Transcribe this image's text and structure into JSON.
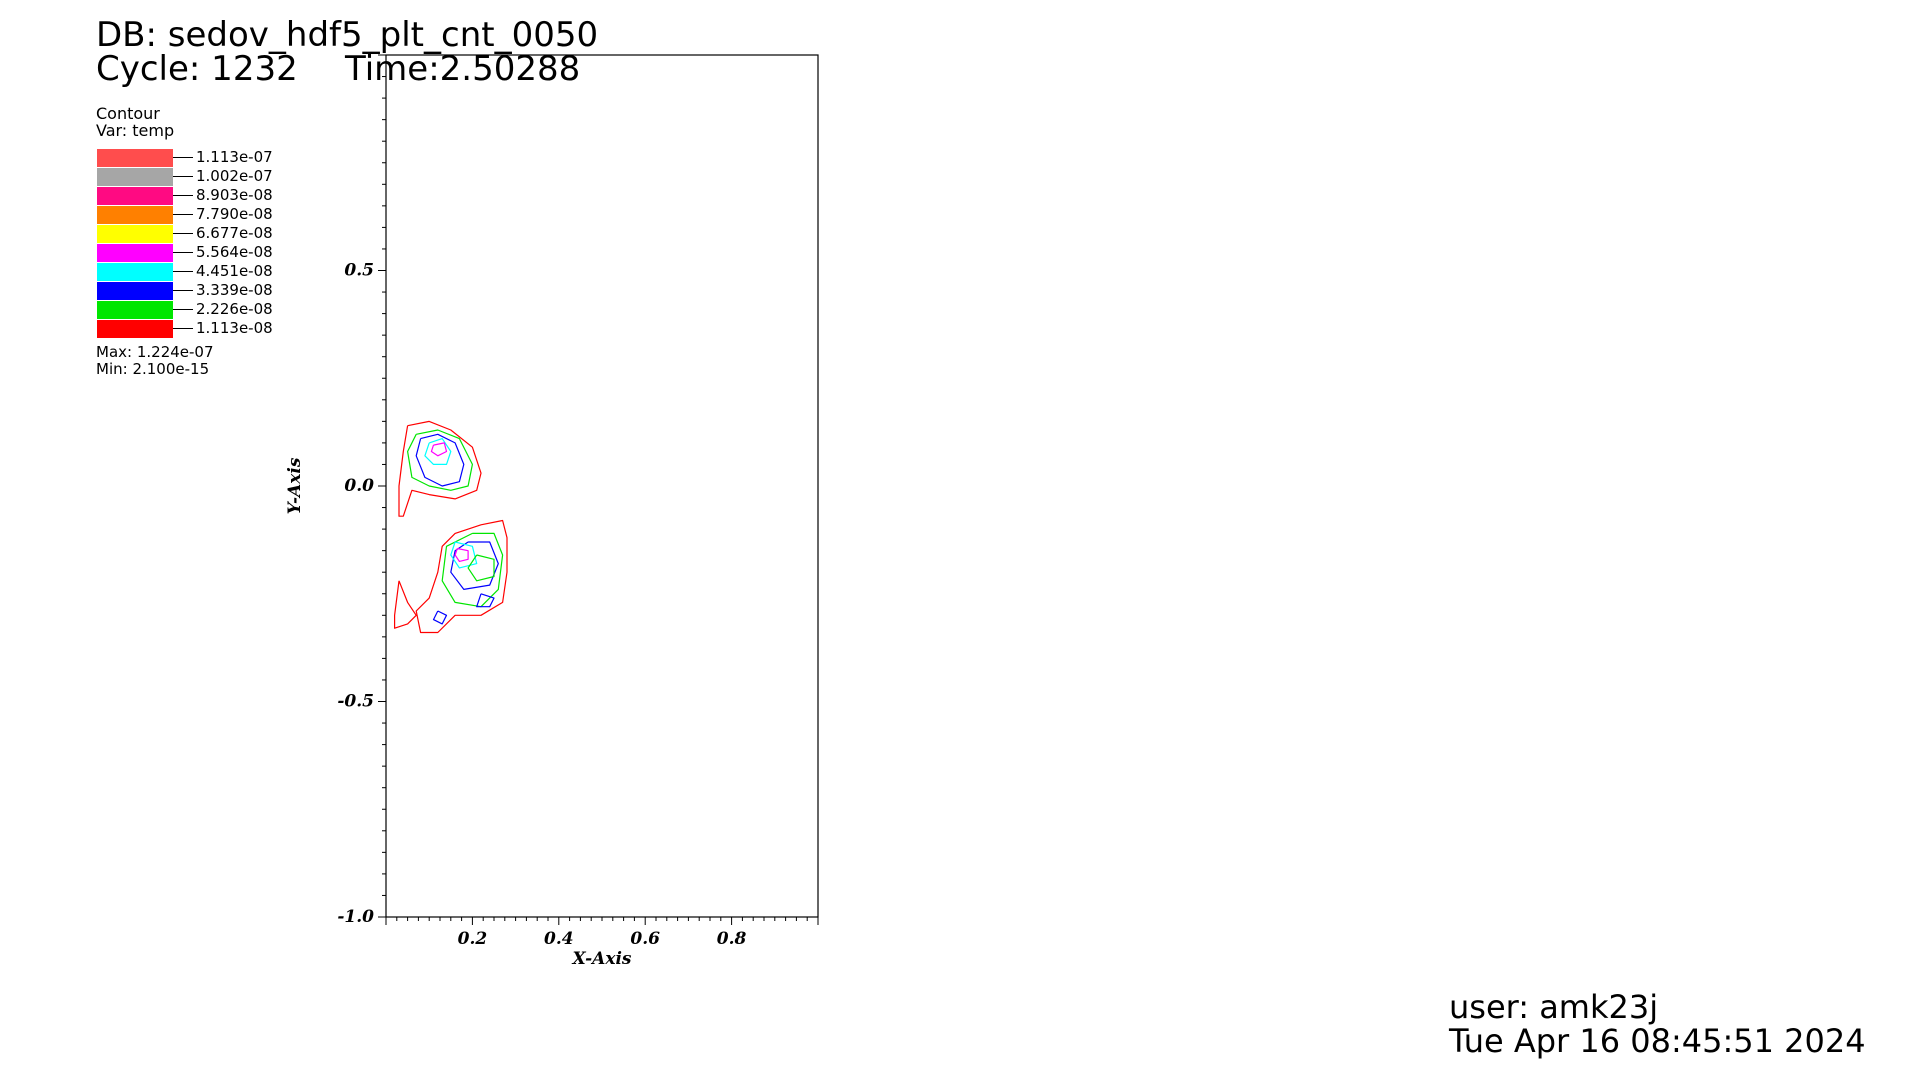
{
  "header": {
    "db": "DB: sedov_hdf5_plt_cnt_0050",
    "cycle": "Cycle: 1232",
    "time": "Time:2.50288"
  },
  "legend": {
    "plot_type": "Contour",
    "var": "Var: temp",
    "levels": [
      {
        "label": "1.113e-07",
        "color": "#ff4d4d"
      },
      {
        "label": "1.002e-07",
        "color": "#a6a6a6"
      },
      {
        "label": "8.903e-08",
        "color": "#ff0a82"
      },
      {
        "label": "7.790e-08",
        "color": "#ff8000"
      },
      {
        "label": "6.677e-08",
        "color": "#ffff00"
      },
      {
        "label": "5.564e-08",
        "color": "#ff00ff"
      },
      {
        "label": "4.451e-08",
        "color": "#00ffff"
      },
      {
        "label": "3.339e-08",
        "color": "#0000ff"
      },
      {
        "label": "2.226e-08",
        "color": "#00e600"
      },
      {
        "label": "1.113e-08",
        "color": "#ff0000"
      }
    ],
    "max": "Max:  1.224e-07",
    "min": "Min:  2.100e-15"
  },
  "footer": {
    "user": "user: amk23j",
    "date": "Tue Apr 16 08:45:51 2024"
  },
  "chart_data": {
    "type": "contour",
    "xlabel": "X-Axis",
    "ylabel": "Y-Axis",
    "xlim": [
      0.0,
      1.0
    ],
    "ylim": [
      -1.0,
      1.0
    ],
    "x_ticks": [
      0.2,
      0.4,
      0.6,
      0.8
    ],
    "x_tick_labels": [
      "0.2",
      "0.4",
      "0.6",
      "0.8"
    ],
    "y_ticks": [
      0.5,
      0.0,
      -0.5,
      -1.0
    ],
    "y_tick_labels": [
      "0.5",
      "0.0",
      "-0.5",
      "-1.0"
    ],
    "contours": [
      {
        "level": "1.113e-08",
        "color": "#ff0000",
        "points": [
          [
            0.05,
            0.14
          ],
          [
            0.1,
            0.15
          ],
          [
            0.15,
            0.13
          ],
          [
            0.2,
            0.09
          ],
          [
            0.22,
            0.03
          ],
          [
            0.21,
            -0.01
          ],
          [
            0.16,
            -0.03
          ],
          [
            0.1,
            -0.02
          ],
          [
            0.06,
            -0.01
          ],
          [
            0.04,
            -0.07
          ],
          [
            0.03,
            -0.07
          ],
          [
            0.03,
            0.0
          ],
          [
            0.04,
            0.08
          ],
          [
            0.05,
            0.14
          ]
        ]
      },
      {
        "level": "2.226e-08",
        "color": "#00e600",
        "points": [
          [
            0.07,
            0.12
          ],
          [
            0.12,
            0.13
          ],
          [
            0.17,
            0.11
          ],
          [
            0.2,
            0.05
          ],
          [
            0.19,
            0.0
          ],
          [
            0.15,
            -0.01
          ],
          [
            0.1,
            0.0
          ],
          [
            0.06,
            0.02
          ],
          [
            0.05,
            0.08
          ],
          [
            0.07,
            0.12
          ]
        ]
      },
      {
        "level": "3.339e-08",
        "color": "#0000ff",
        "points": [
          [
            0.08,
            0.11
          ],
          [
            0.12,
            0.12
          ],
          [
            0.16,
            0.1
          ],
          [
            0.18,
            0.05
          ],
          [
            0.17,
            0.01
          ],
          [
            0.13,
            0.0
          ],
          [
            0.09,
            0.02
          ],
          [
            0.07,
            0.07
          ],
          [
            0.08,
            0.11
          ]
        ]
      },
      {
        "level": "4.451e-08",
        "color": "#00ffff",
        "points": [
          [
            0.1,
            0.1
          ],
          [
            0.13,
            0.11
          ],
          [
            0.15,
            0.08
          ],
          [
            0.14,
            0.05
          ],
          [
            0.11,
            0.05
          ],
          [
            0.09,
            0.07
          ],
          [
            0.1,
            0.1
          ]
        ]
      },
      {
        "level": "5.564e-08",
        "color": "#ff00ff",
        "points": [
          [
            0.11,
            0.095
          ],
          [
            0.135,
            0.1
          ],
          [
            0.14,
            0.08
          ],
          [
            0.12,
            0.07
          ],
          [
            0.105,
            0.08
          ],
          [
            0.11,
            0.095
          ]
        ]
      },
      {
        "level": "1.113e-08",
        "color": "#ff0000",
        "points": [
          [
            0.22,
            -0.09
          ],
          [
            0.27,
            -0.08
          ],
          [
            0.28,
            -0.12
          ],
          [
            0.28,
            -0.2
          ],
          [
            0.27,
            -0.27
          ],
          [
            0.22,
            -0.3
          ],
          [
            0.16,
            -0.3
          ],
          [
            0.12,
            -0.34
          ],
          [
            0.08,
            -0.34
          ],
          [
            0.07,
            -0.29
          ],
          [
            0.1,
            -0.26
          ],
          [
            0.12,
            -0.2
          ],
          [
            0.13,
            -0.14
          ],
          [
            0.16,
            -0.11
          ],
          [
            0.22,
            -0.09
          ]
        ]
      },
      {
        "level": "2.226e-08",
        "color": "#00e600",
        "points": [
          [
            0.2,
            -0.11
          ],
          [
            0.25,
            -0.11
          ],
          [
            0.27,
            -0.16
          ],
          [
            0.26,
            -0.24
          ],
          [
            0.22,
            -0.28
          ],
          [
            0.16,
            -0.27
          ],
          [
            0.13,
            -0.22
          ],
          [
            0.14,
            -0.14
          ],
          [
            0.2,
            -0.11
          ]
        ]
      },
      {
        "level": "3.339e-08",
        "color": "#0000ff",
        "points": [
          [
            0.19,
            -0.13
          ],
          [
            0.24,
            -0.13
          ],
          [
            0.26,
            -0.18
          ],
          [
            0.24,
            -0.23
          ],
          [
            0.18,
            -0.24
          ],
          [
            0.15,
            -0.2
          ],
          [
            0.16,
            -0.15
          ],
          [
            0.19,
            -0.13
          ]
        ]
      },
      {
        "level": "4.451e-08",
        "color": "#00ffff",
        "points": [
          [
            0.16,
            -0.13
          ],
          [
            0.2,
            -0.14
          ],
          [
            0.21,
            -0.18
          ],
          [
            0.17,
            -0.19
          ],
          [
            0.15,
            -0.16
          ],
          [
            0.16,
            -0.13
          ]
        ]
      },
      {
        "level": "5.564e-08",
        "color": "#ff00ff",
        "points": [
          [
            0.165,
            -0.145
          ],
          [
            0.19,
            -0.15
          ],
          [
            0.19,
            -0.17
          ],
          [
            0.17,
            -0.175
          ],
          [
            0.16,
            -0.16
          ],
          [
            0.165,
            -0.145
          ]
        ]
      },
      {
        "level": "2.226e-08",
        "color": "#00e600",
        "points": [
          [
            0.21,
            -0.16
          ],
          [
            0.25,
            -0.17
          ],
          [
            0.25,
            -0.21
          ],
          [
            0.21,
            -0.22
          ],
          [
            0.19,
            -0.19
          ],
          [
            0.21,
            -0.16
          ]
        ]
      },
      {
        "level": "3.339e-08",
        "color": "#0000ff",
        "points": [
          [
            0.22,
            -0.25
          ],
          [
            0.25,
            -0.26
          ],
          [
            0.24,
            -0.28
          ],
          [
            0.21,
            -0.28
          ],
          [
            0.22,
            -0.25
          ]
        ]
      },
      {
        "level": "3.339e-08",
        "color": "#0000ff",
        "points": [
          [
            0.12,
            -0.29
          ],
          [
            0.14,
            -0.3
          ],
          [
            0.13,
            -0.32
          ],
          [
            0.11,
            -0.31
          ],
          [
            0.12,
            -0.29
          ]
        ]
      },
      {
        "level": "1.113e-08",
        "color": "#ff0000",
        "points": [
          [
            0.03,
            -0.22
          ],
          [
            0.05,
            -0.27
          ],
          [
            0.07,
            -0.3
          ],
          [
            0.05,
            -0.32
          ],
          [
            0.02,
            -0.33
          ],
          [
            0.02,
            -0.3
          ],
          [
            0.03,
            -0.22
          ]
        ]
      }
    ]
  }
}
